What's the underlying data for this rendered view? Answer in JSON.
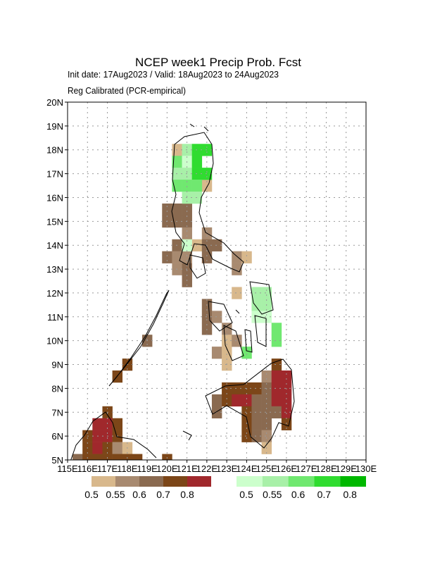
{
  "title": "NCEP week1 Precip Prob. Fcst",
  "subtitle": "Init date: 17Aug2023 / Valid: 18Aug2023 to 24Aug2023",
  "subtitle2": "Reg Calibrated (PCR-empirical)",
  "map": {
    "lonlim": [
      115,
      130
    ],
    "latlim": [
      5,
      20
    ],
    "cell_size": 0.5,
    "grid": true,
    "lonticks": [
      {
        "value": 115,
        "label": "115E"
      },
      {
        "value": 116,
        "label": "116E"
      },
      {
        "value": 117,
        "label": "117E"
      },
      {
        "value": 118,
        "label": "118E"
      },
      {
        "value": 119,
        "label": "119E"
      },
      {
        "value": 120,
        "label": "120E"
      },
      {
        "value": 121,
        "label": "121E"
      },
      {
        "value": 122,
        "label": "122E"
      },
      {
        "value": 123,
        "label": "123E"
      },
      {
        "value": 124,
        "label": "124E"
      },
      {
        "value": 125,
        "label": "125E"
      },
      {
        "value": 126,
        "label": "126E"
      },
      {
        "value": 127,
        "label": "127E"
      },
      {
        "value": 128,
        "label": "128E"
      },
      {
        "value": 129,
        "label": "129E"
      },
      {
        "value": 130,
        "label": "130E"
      }
    ],
    "latticks": [
      {
        "value": 5,
        "label": "5N"
      },
      {
        "value": 6,
        "label": "6N"
      },
      {
        "value": 7,
        "label": "7N"
      },
      {
        "value": 8,
        "label": "8N"
      },
      {
        "value": 9,
        "label": "9N"
      },
      {
        "value": 10,
        "label": "10N"
      },
      {
        "value": 11,
        "label": "11N"
      },
      {
        "value": 12,
        "label": "12N"
      },
      {
        "value": 13,
        "label": "13N"
      },
      {
        "value": 14,
        "label": "14N"
      },
      {
        "value": 15,
        "label": "15N"
      },
      {
        "value": 16,
        "label": "16N"
      },
      {
        "value": 17,
        "label": "17N"
      },
      {
        "value": 18,
        "label": "18N"
      },
      {
        "value": 19,
        "label": "19N"
      },
      {
        "value": 20,
        "label": "20N"
      }
    ],
    "below": {
      "levels": [
        0.5,
        0.55,
        0.6,
        0.7,
        0.8
      ],
      "colors": [
        "#d8b88c",
        "#a88a70",
        "#8a6a50",
        "#7c4618",
        "#a0282c"
      ],
      "cells": [
        [
          120.5,
          18,
          0.5
        ],
        [
          122,
          16.5,
          0.5
        ],
        [
          120,
          15.5,
          0.6
        ],
        [
          120.5,
          15.5,
          0.6
        ],
        [
          121,
          15.5,
          0.6
        ],
        [
          120,
          15,
          0.6
        ],
        [
          120.5,
          15,
          0.6
        ],
        [
          121,
          15,
          0.6
        ],
        [
          121,
          14.5,
          0.55
        ],
        [
          122,
          14.5,
          0.55
        ],
        [
          120.5,
          14,
          0.6
        ],
        [
          121.5,
          14,
          0.5
        ],
        [
          122,
          14,
          0.6
        ],
        [
          122.5,
          14,
          0.6
        ],
        [
          120,
          13.5,
          0.6
        ],
        [
          120.5,
          13.5,
          0.55
        ],
        [
          121,
          13.5,
          0.55
        ],
        [
          122,
          13.5,
          0.6
        ],
        [
          123.5,
          13.5,
          0.55
        ],
        [
          124,
          13.5,
          0.5
        ],
        [
          120.5,
          13,
          0.55
        ],
        [
          121,
          13,
          0.6
        ],
        [
          123.5,
          13,
          0.55
        ],
        [
          121,
          12.5,
          0.6
        ],
        [
          123.5,
          12,
          0.5
        ],
        [
          122,
          11.5,
          0.6
        ],
        [
          122,
          11,
          0.6
        ],
        [
          122.5,
          11,
          0.55
        ],
        [
          122,
          10.5,
          0.6
        ],
        [
          123,
          10.5,
          0.55
        ],
        [
          119,
          10,
          0.6
        ],
        [
          123,
          10,
          0.5
        ],
        [
          123.5,
          10,
          0.55
        ],
        [
          122.5,
          9.5,
          0.55
        ],
        [
          123,
          9.5,
          0.5
        ],
        [
          118,
          9,
          0.7
        ],
        [
          123,
          9,
          0.5
        ],
        [
          125.5,
          9,
          0.7
        ],
        [
          117.5,
          8.5,
          0.7
        ],
        [
          125,
          8.5,
          0.55
        ],
        [
          125.5,
          8.5,
          0.8
        ],
        [
          126,
          8.5,
          0.8
        ],
        [
          123,
          8,
          0.7
        ],
        [
          123.5,
          8,
          0.7
        ],
        [
          124,
          8,
          0.7
        ],
        [
          124.5,
          8,
          0.7
        ],
        [
          125,
          8,
          0.6
        ],
        [
          125.5,
          8,
          0.8
        ],
        [
          126,
          8,
          0.8
        ],
        [
          122.5,
          7.5,
          0.6
        ],
        [
          123,
          7.5,
          0.7
        ],
        [
          123.5,
          7.5,
          0.8
        ],
        [
          124,
          7.5,
          0.8
        ],
        [
          124.5,
          7.5,
          0.6
        ],
        [
          125,
          7.5,
          0.6
        ],
        [
          125.5,
          7.5,
          0.8
        ],
        [
          126,
          7.5,
          0.8
        ],
        [
          117,
          7,
          0.7
        ],
        [
          122.5,
          7,
          0.6
        ],
        [
          124,
          7,
          0.7
        ],
        [
          124.5,
          7,
          0.6
        ],
        [
          125,
          7,
          0.6
        ],
        [
          125.5,
          7,
          0.6
        ],
        [
          126,
          7,
          0.8
        ],
        [
          116.5,
          6.5,
          0.8
        ],
        [
          117,
          6.5,
          0.8
        ],
        [
          117.5,
          6.5,
          0.7
        ],
        [
          124,
          6.5,
          0.7
        ],
        [
          124.5,
          6.5,
          0.6
        ],
        [
          125,
          6.5,
          0.6
        ],
        [
          126,
          6.5,
          0.7
        ],
        [
          116,
          6,
          0.7
        ],
        [
          116.5,
          6,
          0.8
        ],
        [
          117,
          6,
          0.8
        ],
        [
          117.5,
          6,
          0.7
        ],
        [
          124,
          6,
          0.7
        ],
        [
          124.5,
          6,
          0.6
        ],
        [
          125,
          6,
          0.55
        ],
        [
          116,
          5.5,
          0.7
        ],
        [
          116.5,
          5.5,
          0.8
        ],
        [
          117,
          5.5,
          0.7
        ],
        [
          117.5,
          5.5,
          0.55
        ],
        [
          118,
          5.5,
          0.5
        ],
        [
          125,
          5.5,
          0.5
        ],
        [
          115.5,
          5,
          0.6
        ],
        [
          116,
          5,
          0.7
        ],
        [
          116.5,
          5,
          0.7
        ],
        [
          117,
          5,
          0.7
        ],
        [
          117.5,
          5,
          0.7
        ],
        [
          118,
          5,
          0.7
        ],
        [
          118.5,
          5,
          0.7
        ],
        [
          120,
          5,
          0.7
        ]
      ]
    },
    "above": {
      "levels": [
        0.5,
        0.55,
        0.6,
        0.7,
        0.8
      ],
      "colors": [
        "#ccffcc",
        "#a8f0a8",
        "#70e870",
        "#30dc30",
        "#00b800"
      ],
      "cells": [
        [
          121,
          18,
          0.55
        ],
        [
          121.5,
          18,
          0.7
        ],
        [
          122,
          18,
          0.7
        ],
        [
          120.5,
          17.5,
          0.6
        ],
        [
          121,
          17.5,
          0.5
        ],
        [
          121.5,
          17.5,
          0.7
        ],
        [
          120.5,
          17,
          0.55
        ],
        [
          121,
          17,
          0.55
        ],
        [
          121.5,
          17,
          0.7
        ],
        [
          122,
          17,
          0.7
        ],
        [
          120.5,
          16.5,
          0.6
        ],
        [
          121,
          16.5,
          0.6
        ],
        [
          121.5,
          16.5,
          0.6
        ],
        [
          121,
          16,
          0.55
        ],
        [
          121.5,
          16,
          0.55
        ],
        [
          121,
          14,
          0.5
        ],
        [
          124.5,
          12,
          0.55
        ],
        [
          125,
          12,
          0.55
        ],
        [
          124.5,
          11.5,
          0.55
        ],
        [
          125,
          11.5,
          0.55
        ],
        [
          124.5,
          11,
          0.5
        ],
        [
          125,
          11,
          0.5
        ],
        [
          125.5,
          10.5,
          0.6
        ],
        [
          125.5,
          10,
          0.6
        ],
        [
          124,
          9.5,
          0.6
        ]
      ]
    }
  }
}
